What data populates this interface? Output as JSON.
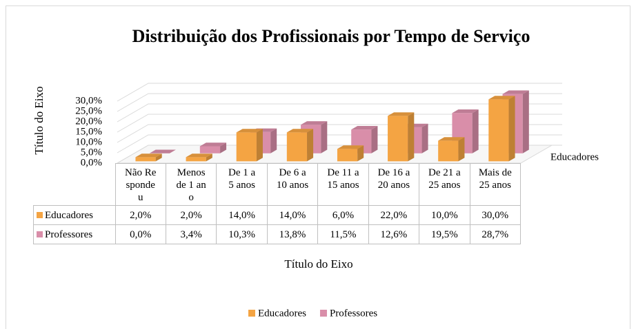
{
  "chart_data": {
    "type": "bar3d",
    "title": "Distribuição dos Profissionais por Tempo de Serviço",
    "y_label": "Título do Eixo",
    "x_label": "Título do Eixo",
    "z_label": "Educadores",
    "categories": [
      "Não Respondeu",
      "Menos de 1 ano",
      "De 1 a 5 anos",
      "De 6 a 10 anos",
      "De 11 a 15 anos",
      "De 16 a 20 anos",
      "De 21 a 25 anos",
      "Mais de 25 anos"
    ],
    "series": [
      {
        "name": "Educadores",
        "color": "#f4a443",
        "values": [
          2,
          2,
          14,
          14,
          6,
          22,
          10,
          30
        ],
        "value_labels": [
          "2,0%",
          "2,0%",
          "14,0%",
          "14,0%",
          "6,0%",
          "22,0%",
          "10,0%",
          "30,0%"
        ]
      },
      {
        "name": "Professores",
        "color": "#d98ea9",
        "values": [
          0,
          3.4,
          10.3,
          13.8,
          11.5,
          12.6,
          19.5,
          28.7
        ],
        "value_labels": [
          "0,0%",
          "3,4%",
          "10,3%",
          "13,8%",
          "11,5%",
          "12,6%",
          "19,5%",
          "28,7%"
        ]
      }
    ],
    "ylim": [
      0,
      30
    ],
    "yticks": [
      {
        "value": 0,
        "label": "0,0%"
      },
      {
        "value": 5,
        "label": "5,0%"
      },
      {
        "value": 10,
        "label": "10,0%"
      },
      {
        "value": 15,
        "label": "15,0%"
      },
      {
        "value": 20,
        "label": "20,0%"
      },
      {
        "value": 25,
        "label": "25,0%"
      },
      {
        "value": 30,
        "label": "30,0%"
      }
    ],
    "grid": true,
    "legend": "bottom"
  }
}
